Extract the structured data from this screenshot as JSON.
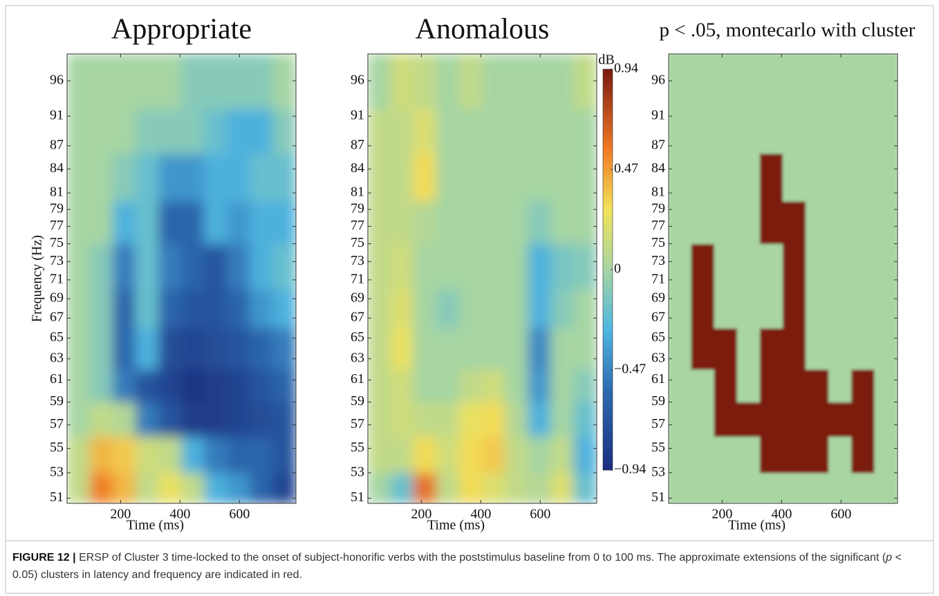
{
  "chart_data": [
    {
      "type": "heatmap",
      "title": "Appropriate",
      "xlabel": "Time (ms)",
      "ylabel": "Frequency (Hz)",
      "xlim": [
        20,
        790
      ],
      "ylim": [
        50.6,
        100
      ],
      "ylog": true,
      "xticks": [
        200,
        400,
        600
      ],
      "yticks": [
        51,
        53,
        55,
        57,
        59,
        61,
        63,
        65,
        67,
        69,
        71,
        73,
        75,
        77,
        79,
        81,
        84,
        87,
        91,
        96
      ],
      "xbins": [
        20,
        97,
        174,
        251,
        328,
        405,
        482,
        559,
        636,
        713,
        790
      ],
      "ybins": [
        50.6,
        53,
        56,
        59,
        62,
        66,
        70,
        75,
        80,
        86,
        92,
        100
      ],
      "values": [
        [
          0.1,
          0.55,
          0.4,
          0.1,
          0.25,
          0.1,
          -0.3,
          -0.4,
          -0.6,
          -0.8
        ],
        [
          0.1,
          0.4,
          0.35,
          0.15,
          0.1,
          -0.3,
          -0.5,
          -0.6,
          -0.6,
          -0.7
        ],
        [
          0,
          0.1,
          0.05,
          -0.5,
          -0.7,
          -0.85,
          -0.85,
          -0.8,
          -0.75,
          -0.7
        ],
        [
          0,
          -0.1,
          -0.5,
          -0.7,
          -0.8,
          -0.9,
          -0.85,
          -0.8,
          -0.7,
          -0.6
        ],
        [
          0,
          -0.1,
          -0.6,
          -0.3,
          -0.75,
          -0.8,
          -0.75,
          -0.7,
          -0.6,
          -0.5
        ],
        [
          0,
          -0.1,
          -0.6,
          -0.2,
          -0.6,
          -0.7,
          -0.7,
          -0.6,
          -0.4,
          -0.3
        ],
        [
          0,
          -0.1,
          -0.5,
          -0.2,
          -0.5,
          -0.6,
          -0.7,
          -0.5,
          -0.3,
          -0.2
        ],
        [
          0,
          0,
          -0.3,
          -0.2,
          -0.6,
          -0.6,
          -0.3,
          -0.4,
          -0.3,
          -0.3
        ],
        [
          0,
          0,
          -0.1,
          -0.2,
          -0.4,
          -0.4,
          -0.3,
          -0.3,
          -0.2,
          -0.2
        ],
        [
          0,
          0,
          0,
          -0.1,
          -0.1,
          -0.1,
          -0.2,
          -0.3,
          -0.3,
          -0.1
        ],
        [
          0,
          0,
          0,
          0,
          0,
          -0.1,
          -0.1,
          -0.1,
          -0.1,
          0
        ]
      ]
    },
    {
      "type": "heatmap",
      "title": "Anomalous",
      "xlabel": "Time (ms)",
      "xlim": [
        20,
        790
      ],
      "ylim": [
        50.6,
        100
      ],
      "ylog": true,
      "xticks": [
        200,
        400,
        600
      ],
      "yticks": [
        51,
        53,
        55,
        57,
        59,
        61,
        63,
        65,
        67,
        69,
        71,
        73,
        75,
        77,
        79,
        81,
        84,
        87,
        91,
        96
      ],
      "xbins": [
        20,
        97,
        174,
        251,
        328,
        405,
        482,
        559,
        636,
        713,
        790
      ],
      "ybins": [
        50.6,
        53,
        56,
        59,
        62,
        66,
        70,
        75,
        80,
        86,
        92,
        100
      ],
      "values": [
        [
          0,
          -0.2,
          0.6,
          0.1,
          0.3,
          0.2,
          0.1,
          0.05,
          0.2,
          -0.2
        ],
        [
          0.1,
          0.1,
          0.3,
          0.15,
          0.3,
          0.35,
          0.1,
          0,
          0.1,
          -0.3
        ],
        [
          0.1,
          0.15,
          0.1,
          0.1,
          0.25,
          0.3,
          0.05,
          -0.3,
          0,
          -0.2
        ],
        [
          0.1,
          0.15,
          0,
          0,
          0.1,
          0.15,
          0,
          -0.4,
          0,
          -0.1
        ],
        [
          0.1,
          0.25,
          0,
          0,
          0,
          0,
          0,
          -0.45,
          0,
          0
        ],
        [
          0.1,
          0.2,
          0,
          -0.1,
          0,
          0,
          0,
          -0.3,
          -0.1,
          0
        ],
        [
          0.1,
          0.15,
          0,
          0,
          0,
          0,
          0,
          -0.3,
          -0.15,
          -0.1
        ],
        [
          0.1,
          0.1,
          0.05,
          0,
          0,
          0,
          0,
          -0.1,
          0,
          0
        ],
        [
          0.1,
          0.1,
          0.3,
          0,
          0,
          0,
          0,
          0,
          0,
          0
        ],
        [
          0.1,
          0.1,
          0.2,
          0,
          0,
          0,
          0,
          0,
          0,
          0
        ],
        [
          0,
          0.15,
          0.1,
          0,
          0.1,
          0,
          0,
          0,
          0,
          0.1
        ]
      ],
      "colorbar": {
        "label": "dB",
        "clim": [
          -0.94,
          0.94
        ],
        "ticks": [
          {
            "value": -0.94,
            "label": "−0.94"
          },
          {
            "value": -0.47,
            "label": "−0.47"
          },
          0,
          0.47,
          0.94
        ]
      }
    },
    {
      "type": "mask",
      "title": "p < .05, montecarlo with cluster",
      "xlabel": "Time (ms)",
      "xlim": [
        20,
        790
      ],
      "ylim": [
        50.6,
        100
      ],
      "ylog": true,
      "xticks": [
        200,
        400,
        600
      ],
      "yticks": [
        51,
        53,
        55,
        57,
        59,
        61,
        63,
        65,
        67,
        69,
        71,
        73,
        75,
        77,
        79,
        81,
        84,
        87,
        91,
        96
      ],
      "xbins": [
        20,
        97,
        174,
        251,
        328,
        405,
        482,
        559,
        636,
        713,
        790
      ],
      "ybins": [
        50.6,
        53,
        56,
        59,
        62,
        66,
        70,
        75,
        80,
        86,
        92,
        100
      ],
      "palette": [
        "#a8d5a1",
        "#7b1a10"
      ],
      "values": [
        [
          0,
          0,
          0,
          0,
          0,
          0,
          0,
          0,
          0,
          0
        ],
        [
          0,
          0,
          0,
          0,
          1,
          1,
          1,
          0,
          1,
          0
        ],
        [
          0,
          0,
          1,
          1,
          1,
          1,
          1,
          1,
          1,
          0
        ],
        [
          0,
          0,
          1,
          0,
          1,
          1,
          1,
          0,
          1,
          0
        ],
        [
          0,
          1,
          1,
          0,
          1,
          1,
          0,
          0,
          0,
          0
        ],
        [
          0,
          1,
          0,
          0,
          0,
          1,
          0,
          0,
          0,
          0
        ],
        [
          0,
          1,
          0,
          0,
          0,
          1,
          0,
          0,
          0,
          0
        ],
        [
          0,
          0,
          0,
          0,
          1,
          1,
          0,
          0,
          0,
          0
        ],
        [
          0,
          0,
          0,
          0,
          1,
          0,
          0,
          0,
          0,
          0
        ],
        [
          0,
          0,
          0,
          0,
          0,
          0,
          0,
          0,
          0,
          0
        ],
        [
          0,
          0,
          0,
          0,
          0,
          0,
          0,
          0,
          0,
          0
        ]
      ]
    }
  ],
  "caption": {
    "label": "FIGURE 12 |",
    "text_before": "ERSP of Cluster 3 time-locked to the onset of subject-honorific verbs with the poststimulus baseline from 0 to 100 ms. The approximate extensions of the significant (",
    "italic": "p",
    "text_after": " < 0.05) clusters in latency and frequency are indicated in red."
  }
}
